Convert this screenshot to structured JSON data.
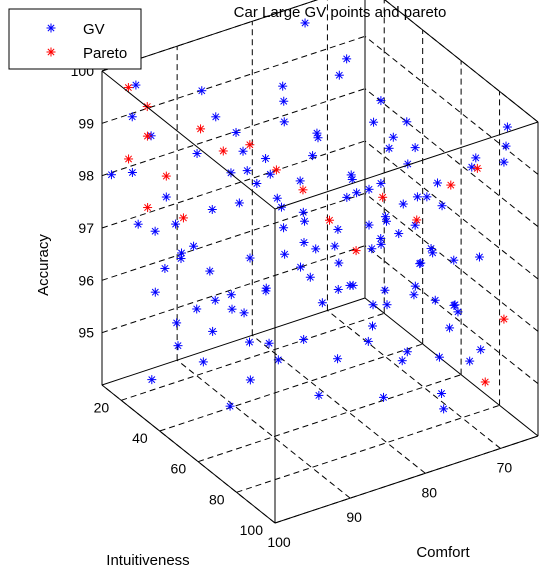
{
  "chart_data": {
    "type": "scatter",
    "projection": "3d",
    "title": "Car Large GV points and pareto",
    "xlabel": "Intuitiveness",
    "ylabel": "Comfort",
    "zlabel": "Accuracy",
    "xlim": [
      10,
      100
    ],
    "ylim": [
      65,
      100
    ],
    "zlim": [
      94,
      100
    ],
    "x_ticks": [
      "20",
      "40",
      "60",
      "80",
      "100"
    ],
    "y_ticks": [
      "70",
      "80",
      "90",
      "100"
    ],
    "z_ticks": [
      "95",
      "96",
      "97",
      "98",
      "99",
      "100"
    ],
    "grid": true,
    "legend_position": "top-left",
    "colors": {
      "GV": "#0000ff",
      "Pareto": "#ff0000"
    },
    "marker": "*",
    "series": [
      {
        "name": "GV",
        "points": [
          [
            12,
            96,
            99.6
          ],
          [
            14,
            97,
            99.1
          ],
          [
            16,
            95,
            98.7
          ],
          [
            18,
            98,
            98.2
          ],
          [
            20,
            94,
            97.6
          ],
          [
            22,
            96,
            97.1
          ],
          [
            24,
            93,
            96.6
          ],
          [
            26,
            97,
            96.1
          ],
          [
            28,
            92,
            95.6
          ],
          [
            30,
            95,
            95.1
          ],
          [
            32,
            99,
            94.7
          ],
          [
            34,
            91,
            99.4
          ],
          [
            36,
            94,
            98.9
          ],
          [
            38,
            90,
            98.4
          ],
          [
            40,
            93,
            97.9
          ],
          [
            42,
            96,
            97.4
          ],
          [
            44,
            89,
            96.9
          ],
          [
            46,
            92,
            96.4
          ],
          [
            48,
            95,
            95.9
          ],
          [
            50,
            88,
            95.4
          ],
          [
            52,
            91,
            94.9
          ],
          [
            54,
            87,
            99.7
          ],
          [
            56,
            90,
            99.2
          ],
          [
            58,
            94,
            98.6
          ],
          [
            60,
            86,
            98.1
          ],
          [
            62,
            89,
            97.5
          ],
          [
            64,
            92,
            97.0
          ],
          [
            66,
            85,
            96.5
          ],
          [
            68,
            88,
            96.0
          ],
          [
            70,
            84,
            95.5
          ],
          [
            72,
            87,
            95.0
          ],
          [
            74,
            90,
            99.3
          ],
          [
            76,
            83,
            98.8
          ],
          [
            78,
            86,
            98.3
          ],
          [
            80,
            82,
            97.8
          ],
          [
            82,
            85,
            97.3
          ],
          [
            84,
            81,
            96.8
          ],
          [
            86,
            84,
            96.3
          ],
          [
            88,
            80,
            95.8
          ],
          [
            90,
            83,
            95.3
          ],
          [
            92,
            79,
            99.0
          ],
          [
            94,
            82,
            98.5
          ],
          [
            96,
            78,
            98.0
          ],
          [
            98,
            81,
            97.4
          ],
          [
            15,
            88,
            99.2
          ],
          [
            25,
            86,
            98.6
          ],
          [
            35,
            84,
            98.0
          ],
          [
            45,
            82,
            97.3
          ],
          [
            55,
            80,
            96.7
          ],
          [
            65,
            78,
            96.1
          ],
          [
            75,
            76,
            95.4
          ],
          [
            85,
            74,
            94.8
          ],
          [
            95,
            72,
            99.5
          ],
          [
            18,
            78,
            98.9
          ],
          [
            28,
            76,
            98.2
          ],
          [
            38,
            74,
            97.6
          ],
          [
            48,
            72,
            97.0
          ],
          [
            58,
            70,
            96.3
          ],
          [
            68,
            68,
            95.7
          ],
          [
            78,
            67,
            95.1
          ],
          [
            88,
            66,
            99.6
          ],
          [
            20,
            70,
            99.1
          ],
          [
            30,
            68,
            98.5
          ],
          [
            40,
            66,
            97.8
          ],
          [
            50,
            67,
            97.2
          ],
          [
            60,
            69,
            96.6
          ],
          [
            70,
            71,
            96.0
          ],
          [
            80,
            73,
            95.3
          ],
          [
            90,
            75,
            94.7
          ],
          [
            13,
            82,
            97.7
          ],
          [
            23,
            80,
            97.0
          ],
          [
            33,
            79,
            96.4
          ],
          [
            43,
            77,
            95.7
          ],
          [
            53,
            75,
            95.2
          ],
          [
            63,
            73,
            99.3
          ],
          [
            73,
            79,
            98.7
          ],
          [
            83,
            77,
            98.1
          ],
          [
            93,
            71,
            97.5
          ],
          [
            17,
            92,
            96.9
          ],
          [
            27,
            90,
            96.2
          ],
          [
            37,
            88,
            95.6
          ],
          [
            47,
            86,
            94.9
          ],
          [
            57,
            84,
            99.0
          ],
          [
            67,
            82,
            98.4
          ],
          [
            77,
            80,
            97.7
          ],
          [
            87,
            78,
            97.1
          ],
          [
            97,
            76,
            96.5
          ],
          [
            11,
            99,
            98.0
          ],
          [
            21,
            98,
            97.3
          ],
          [
            31,
            97,
            96.7
          ],
          [
            41,
            98,
            96.0
          ],
          [
            51,
            97,
            95.5
          ],
          [
            61,
            96,
            94.9
          ],
          [
            71,
            95,
            99.4
          ],
          [
            81,
            94,
            98.8
          ],
          [
            91,
            93,
            98.1
          ],
          [
            14,
            74,
            99.8
          ],
          [
            24,
            72,
            99.0
          ],
          [
            34,
            70,
            98.3
          ],
          [
            44,
            68,
            97.7
          ],
          [
            54,
            66,
            97.1
          ],
          [
            64,
            67,
            96.4
          ],
          [
            74,
            69,
            95.8
          ],
          [
            84,
            70,
            95.2
          ],
          [
            94,
            68,
            99.2
          ],
          [
            19,
            85,
            95.0
          ],
          [
            29,
            83,
            95.6
          ],
          [
            39,
            81,
            96.2
          ],
          [
            49,
            79,
            96.8
          ],
          [
            59,
            77,
            97.4
          ],
          [
            69,
            75,
            98.0
          ],
          [
            79,
            73,
            98.6
          ],
          [
            89,
            71,
            99.1
          ],
          [
            99,
            69,
            99.7
          ],
          [
            16,
            66,
            96.3
          ],
          [
            26,
            67,
            95.7
          ],
          [
            36,
            69,
            95.1
          ],
          [
            46,
            71,
            98.2
          ],
          [
            56,
            73,
            98.8
          ],
          [
            66,
            95,
            99.5
          ],
          [
            76,
            93,
            99.0
          ],
          [
            86,
            91,
            98.4
          ],
          [
            96,
            89,
            97.9
          ],
          [
            12,
            90,
            96.0
          ],
          [
            22,
            88,
            95.4
          ],
          [
            32,
            86,
            94.8
          ],
          [
            42,
            84,
            99.6
          ],
          [
            52,
            82,
            99.1
          ],
          [
            62,
            80,
            98.5
          ],
          [
            72,
            78,
            97.9
          ],
          [
            82,
            76,
            97.3
          ],
          [
            92,
            74,
            96.7
          ]
        ]
      },
      {
        "name": "Pareto",
        "points": [
          [
            12,
            97,
            99.6
          ],
          [
            14,
            95,
            99.2
          ],
          [
            18,
            96,
            98.8
          ],
          [
            16,
            98,
            98.4
          ],
          [
            20,
            94,
            98.0
          ],
          [
            22,
            97,
            97.6
          ],
          [
            25,
            93,
            97.3
          ],
          [
            30,
            92,
            99.1
          ],
          [
            34,
            90,
            98.7
          ],
          [
            40,
            88,
            98.9
          ],
          [
            46,
            86,
            98.5
          ],
          [
            52,
            84,
            98.2
          ],
          [
            58,
            82,
            97.7
          ],
          [
            64,
            80,
            97.2
          ],
          [
            70,
            78,
            98.3
          ],
          [
            76,
            75,
            97.9
          ],
          [
            82,
            72,
            98.6
          ],
          [
            88,
            70,
            99.0
          ],
          [
            94,
            68,
            96.2
          ],
          [
            96,
            71,
            95.2
          ]
        ]
      }
    ]
  }
}
